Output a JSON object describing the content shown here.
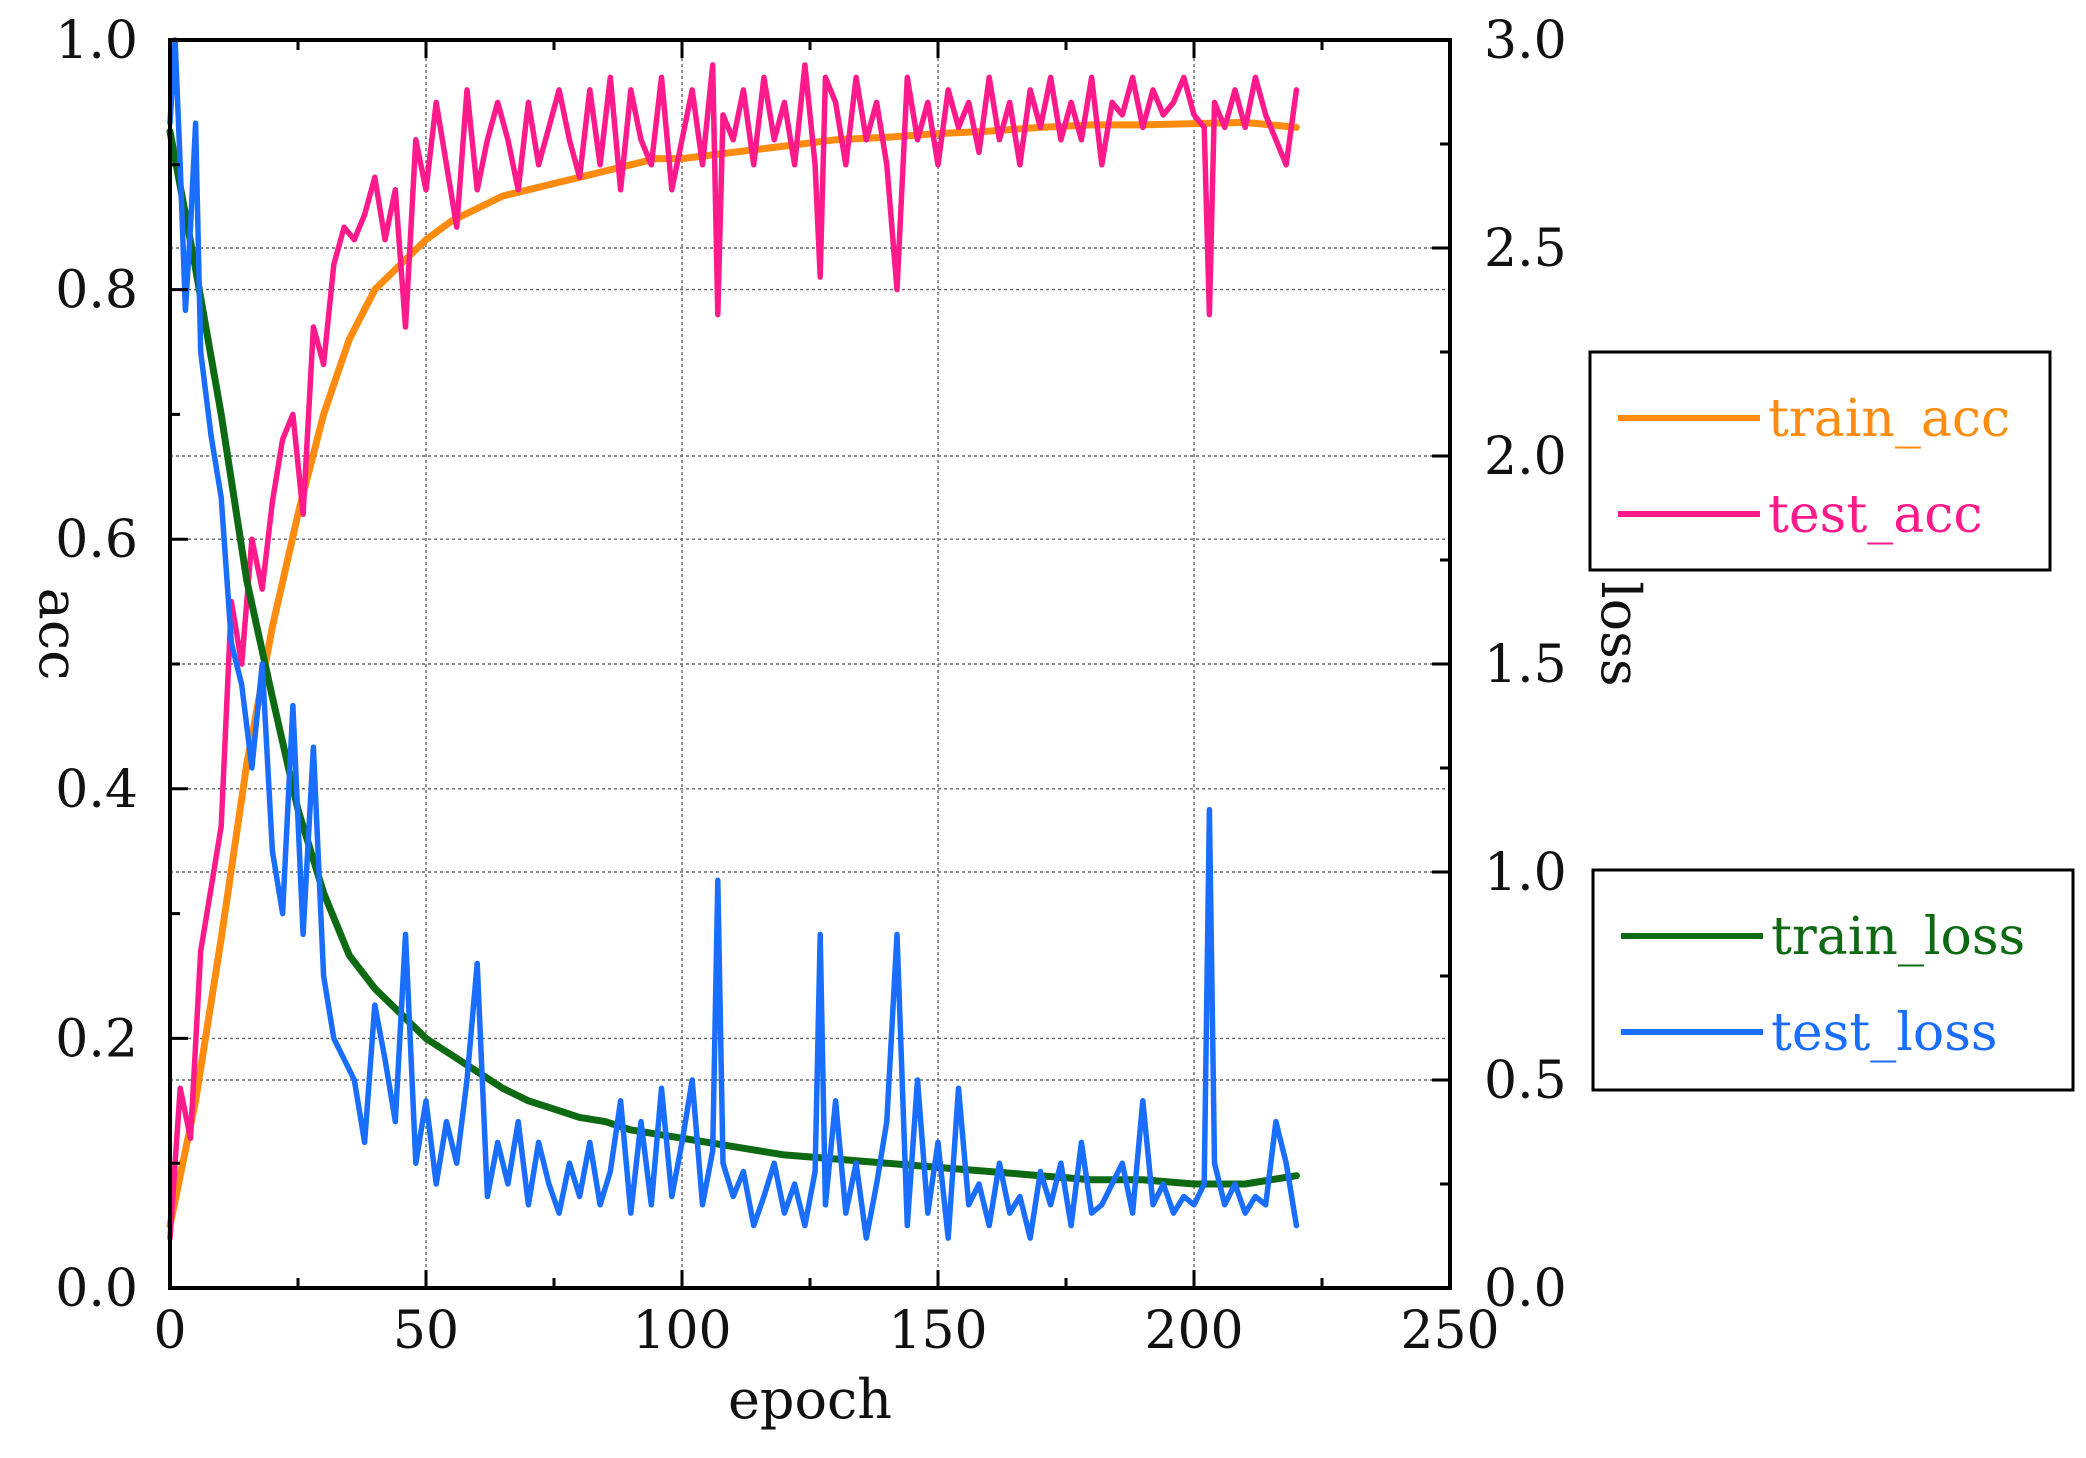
{
  "chart_data": {
    "type": "line",
    "xlabel": "epoch",
    "ylabel_left": "acc",
    "ylabel_right": "loss",
    "xlim": [
      0,
      250
    ],
    "ylim_left": [
      0,
      1.0
    ],
    "ylim_right": [
      0,
      3.0
    ],
    "x_ticks": [
      0,
      50,
      100,
      150,
      200,
      250
    ],
    "x_tick_labels": [
      "0",
      "50",
      "100",
      "150",
      "200",
      "250"
    ],
    "y_left_ticks": [
      0.0,
      0.2,
      0.4,
      0.6,
      0.8,
      1.0
    ],
    "y_left_tick_labels": [
      "0.0",
      "0.2",
      "0.4",
      "0.6",
      "0.8",
      "1.0"
    ],
    "y_right_ticks": [
      0.0,
      0.5,
      1.0,
      1.5,
      2.0,
      2.5,
      3.0
    ],
    "y_right_tick_labels": [
      "0.0",
      "0.5",
      "1.0",
      "1.5",
      "2.0",
      "2.5",
      "3.0"
    ],
    "grid": true,
    "legends": [
      {
        "position": "right-upper",
        "entries": [
          "train_acc",
          "test_acc"
        ]
      },
      {
        "position": "right-lower",
        "entries": [
          "train_loss",
          "test_loss"
        ]
      }
    ],
    "series": [
      {
        "name": "train_acc",
        "axis": "left",
        "color": "#ff8c0f",
        "x": [
          0,
          5,
          10,
          15,
          20,
          25,
          30,
          35,
          40,
          45,
          50,
          55,
          60,
          65,
          70,
          75,
          80,
          85,
          90,
          95,
          100,
          110,
          120,
          130,
          140,
          150,
          160,
          170,
          180,
          190,
          200,
          210,
          220
        ],
        "values": [
          0.05,
          0.15,
          0.28,
          0.42,
          0.53,
          0.62,
          0.7,
          0.76,
          0.8,
          0.82,
          0.84,
          0.855,
          0.865,
          0.875,
          0.88,
          0.885,
          0.89,
          0.895,
          0.9,
          0.905,
          0.905,
          0.91,
          0.915,
          0.92,
          0.922,
          0.925,
          0.927,
          0.93,
          0.932,
          0.932,
          0.933,
          0.934,
          0.93
        ]
      },
      {
        "name": "test_acc",
        "axis": "left",
        "color": "#ff1a8c",
        "x": [
          0,
          2,
          4,
          6,
          8,
          10,
          12,
          14,
          16,
          18,
          20,
          22,
          24,
          26,
          28,
          30,
          32,
          34,
          36,
          38,
          40,
          42,
          44,
          46,
          48,
          50,
          52,
          54,
          56,
          58,
          60,
          62,
          64,
          66,
          68,
          70,
          72,
          74,
          76,
          78,
          80,
          82,
          84,
          86,
          88,
          90,
          92,
          94,
          96,
          98,
          100,
          102,
          104,
          106,
          107,
          108,
          110,
          112,
          114,
          116,
          118,
          120,
          122,
          124,
          126,
          127,
          128,
          130,
          132,
          134,
          136,
          138,
          140,
          142,
          144,
          146,
          148,
          150,
          152,
          154,
          156,
          158,
          160,
          162,
          164,
          166,
          168,
          170,
          172,
          174,
          176,
          178,
          180,
          182,
          184,
          186,
          188,
          190,
          192,
          194,
          196,
          198,
          200,
          202,
          203,
          204,
          206,
          208,
          210,
          212,
          214,
          216,
          218,
          220
        ],
        "values": [
          0.04,
          0.16,
          0.12,
          0.27,
          0.32,
          0.37,
          0.55,
          0.5,
          0.6,
          0.56,
          0.63,
          0.68,
          0.7,
          0.62,
          0.77,
          0.74,
          0.82,
          0.85,
          0.84,
          0.86,
          0.89,
          0.84,
          0.88,
          0.77,
          0.92,
          0.88,
          0.95,
          0.9,
          0.85,
          0.96,
          0.88,
          0.92,
          0.95,
          0.92,
          0.88,
          0.95,
          0.9,
          0.93,
          0.96,
          0.92,
          0.89,
          0.96,
          0.9,
          0.97,
          0.88,
          0.96,
          0.92,
          0.9,
          0.97,
          0.88,
          0.92,
          0.96,
          0.9,
          0.98,
          0.78,
          0.94,
          0.92,
          0.96,
          0.9,
          0.97,
          0.92,
          0.95,
          0.9,
          0.98,
          0.9,
          0.81,
          0.97,
          0.95,
          0.9,
          0.97,
          0.92,
          0.95,
          0.9,
          0.8,
          0.97,
          0.92,
          0.95,
          0.9,
          0.96,
          0.93,
          0.95,
          0.91,
          0.97,
          0.92,
          0.95,
          0.9,
          0.96,
          0.93,
          0.97,
          0.92,
          0.95,
          0.92,
          0.97,
          0.9,
          0.95,
          0.94,
          0.97,
          0.93,
          0.96,
          0.94,
          0.95,
          0.97,
          0.94,
          0.93,
          0.78,
          0.95,
          0.93,
          0.96,
          0.93,
          0.97,
          0.94,
          0.92,
          0.9,
          0.96
        ]
      },
      {
        "name": "train_loss",
        "axis": "right",
        "color": "#0e6a12",
        "x": [
          0,
          5,
          10,
          15,
          20,
          25,
          30,
          35,
          40,
          45,
          50,
          55,
          60,
          65,
          70,
          75,
          80,
          85,
          90,
          95,
          100,
          110,
          120,
          130,
          140,
          150,
          160,
          170,
          180,
          190,
          200,
          210,
          220
        ],
        "values": [
          2.78,
          2.45,
          2.1,
          1.7,
          1.42,
          1.15,
          0.95,
          0.8,
          0.72,
          0.66,
          0.6,
          0.56,
          0.52,
          0.48,
          0.45,
          0.43,
          0.41,
          0.4,
          0.38,
          0.37,
          0.36,
          0.34,
          0.32,
          0.31,
          0.3,
          0.29,
          0.28,
          0.27,
          0.26,
          0.26,
          0.25,
          0.25,
          0.27
        ]
      },
      {
        "name": "test_loss",
        "axis": "right",
        "color": "#1a6eff",
        "x": [
          0,
          1,
          2,
          3,
          4,
          5,
          6,
          8,
          10,
          12,
          14,
          16,
          18,
          20,
          22,
          24,
          26,
          28,
          30,
          32,
          34,
          36,
          38,
          40,
          42,
          44,
          46,
          48,
          50,
          52,
          54,
          56,
          58,
          60,
          62,
          64,
          66,
          68,
          70,
          72,
          74,
          76,
          78,
          80,
          82,
          84,
          86,
          88,
          90,
          92,
          94,
          96,
          98,
          100,
          102,
          104,
          106,
          107,
          108,
          110,
          112,
          114,
          116,
          118,
          120,
          122,
          124,
          126,
          127,
          128,
          130,
          132,
          134,
          136,
          138,
          140,
          142,
          144,
          146,
          148,
          150,
          152,
          154,
          156,
          158,
          160,
          162,
          164,
          166,
          168,
          170,
          172,
          174,
          176,
          178,
          180,
          182,
          184,
          186,
          188,
          190,
          192,
          194,
          196,
          198,
          200,
          202,
          203,
          204,
          206,
          208,
          210,
          212,
          214,
          216,
          218,
          220
        ],
        "values": [
          2.8,
          3.0,
          2.7,
          2.35,
          2.55,
          2.8,
          2.25,
          2.05,
          1.9,
          1.55,
          1.45,
          1.25,
          1.5,
          1.05,
          0.9,
          1.4,
          0.85,
          1.3,
          0.75,
          0.6,
          0.55,
          0.5,
          0.35,
          0.68,
          0.55,
          0.4,
          0.85,
          0.3,
          0.45,
          0.25,
          0.4,
          0.3,
          0.5,
          0.78,
          0.22,
          0.35,
          0.25,
          0.4,
          0.2,
          0.35,
          0.25,
          0.18,
          0.3,
          0.22,
          0.35,
          0.2,
          0.28,
          0.45,
          0.18,
          0.4,
          0.2,
          0.48,
          0.22,
          0.35,
          0.5,
          0.2,
          0.33,
          0.98,
          0.3,
          0.22,
          0.28,
          0.15,
          0.22,
          0.3,
          0.18,
          0.25,
          0.15,
          0.28,
          0.85,
          0.2,
          0.45,
          0.18,
          0.3,
          0.12,
          0.25,
          0.4,
          0.85,
          0.15,
          0.5,
          0.18,
          0.35,
          0.12,
          0.48,
          0.2,
          0.25,
          0.15,
          0.3,
          0.18,
          0.22,
          0.12,
          0.28,
          0.2,
          0.3,
          0.15,
          0.35,
          0.18,
          0.2,
          0.25,
          0.3,
          0.18,
          0.45,
          0.2,
          0.25,
          0.18,
          0.22,
          0.2,
          0.25,
          1.15,
          0.3,
          0.2,
          0.25,
          0.18,
          0.22,
          0.2,
          0.4,
          0.3,
          0.15
        ]
      }
    ]
  }
}
